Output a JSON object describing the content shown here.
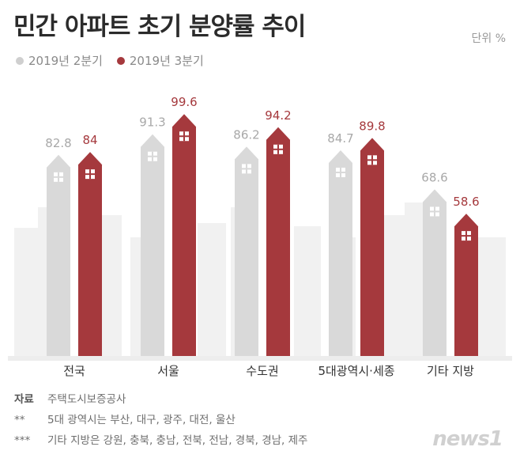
{
  "header": {
    "title": "민간 아파트 초기 분양률 추이",
    "unit": "단위 %"
  },
  "legend": [
    {
      "label": "2019년 2분기",
      "color": "#cfcfcf"
    },
    {
      "label": "2019년 3분기",
      "color": "#a5393d"
    }
  ],
  "chart_data": {
    "type": "bar",
    "categories": [
      "전국",
      "서울",
      "수도권",
      "5대광역시·세종",
      "기타 지방"
    ],
    "series": [
      {
        "name": "2019년 2분기",
        "values": [
          82.8,
          91.3,
          86.2,
          84.7,
          68.6
        ],
        "color": "#d9d9d9",
        "label_color": "#a8a8a8"
      },
      {
        "name": "2019년 3분기",
        "values": [
          84,
          99.6,
          94.2,
          89.8,
          58.6
        ],
        "color": "#a5393d",
        "label_color": "#a5393d"
      }
    ],
    "value_labels": [
      [
        "82.8",
        "84"
      ],
      [
        "91.3",
        "99.6"
      ],
      [
        "86.2",
        "94.2"
      ],
      [
        "84.7",
        "89.8"
      ],
      [
        "68.6",
        "58.6"
      ]
    ],
    "ylim": [
      0,
      100
    ],
    "grid": false,
    "legend_position": "top-left"
  },
  "notes": [
    {
      "key": "자료",
      "text": "주택도시보증공사"
    },
    {
      "key": "**",
      "text": "5대 광역시는 부산, 대구, 광주, 대전, 울산"
    },
    {
      "key": "***",
      "text": "기타 지방은 강원, 충북, 충남, 전북, 전남, 경북, 경남, 제주"
    }
  ],
  "logo": "news1"
}
